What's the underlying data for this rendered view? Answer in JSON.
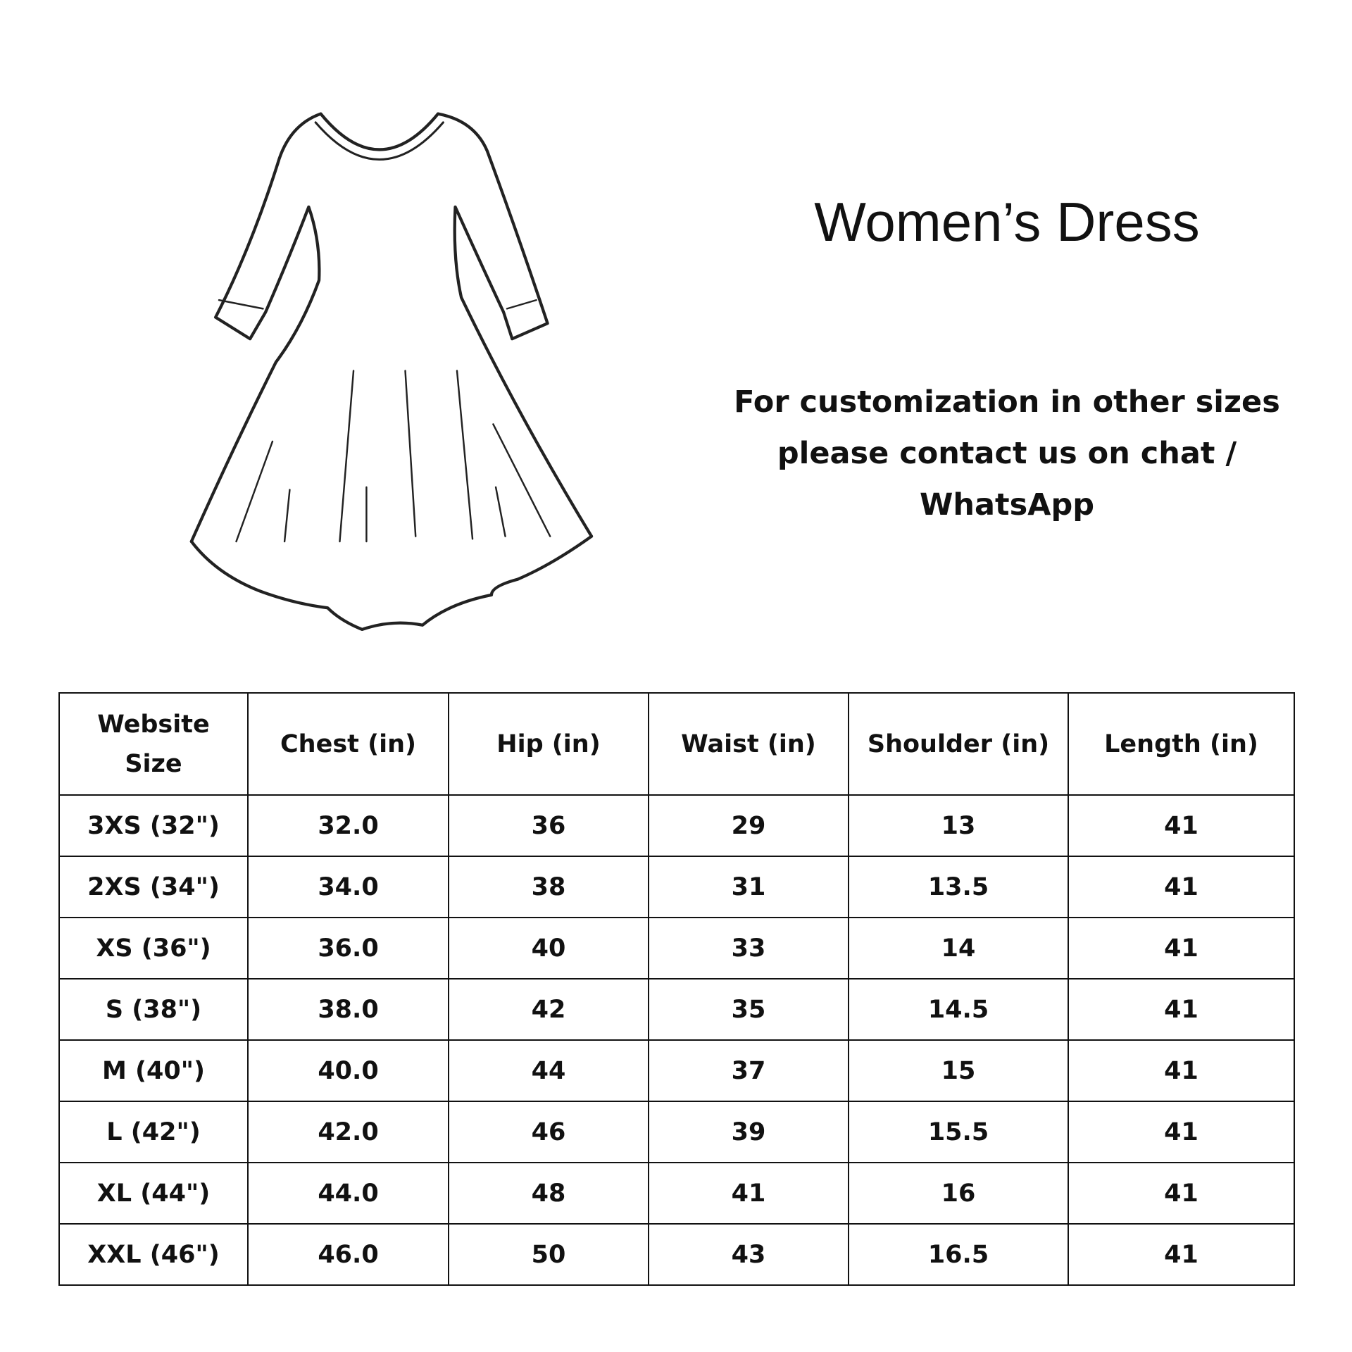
{
  "title": "Women’s Dress",
  "note": "For customization in other sizes please contact us on chat / WhatsApp",
  "table": {
    "headers": [
      "Website Size",
      "Chest (in)",
      "Hip (in)",
      "Waist (in)",
      "Shoulder (in)",
      "Length (in)"
    ],
    "rows": [
      [
        "3XS (32\")",
        "32.0",
        "36",
        "29",
        "13",
        "41"
      ],
      [
        "2XS (34\")",
        "34.0",
        "38",
        "31",
        "13.5",
        "41"
      ],
      [
        "XS (36\")",
        "36.0",
        "40",
        "33",
        "14",
        "41"
      ],
      [
        "S (38\")",
        "38.0",
        "42",
        "35",
        "14.5",
        "41"
      ],
      [
        "M (40\")",
        "40.0",
        "44",
        "37",
        "15",
        "41"
      ],
      [
        "L (42\")",
        "42.0",
        "46",
        "39",
        "15.5",
        "41"
      ],
      [
        "XL (44\")",
        "44.0",
        "48",
        "41",
        "16",
        "41"
      ],
      [
        "XXL (46\")",
        "46.0",
        "50",
        "43",
        "16.5",
        "41"
      ]
    ]
  },
  "illustration": "dress-line-drawing"
}
